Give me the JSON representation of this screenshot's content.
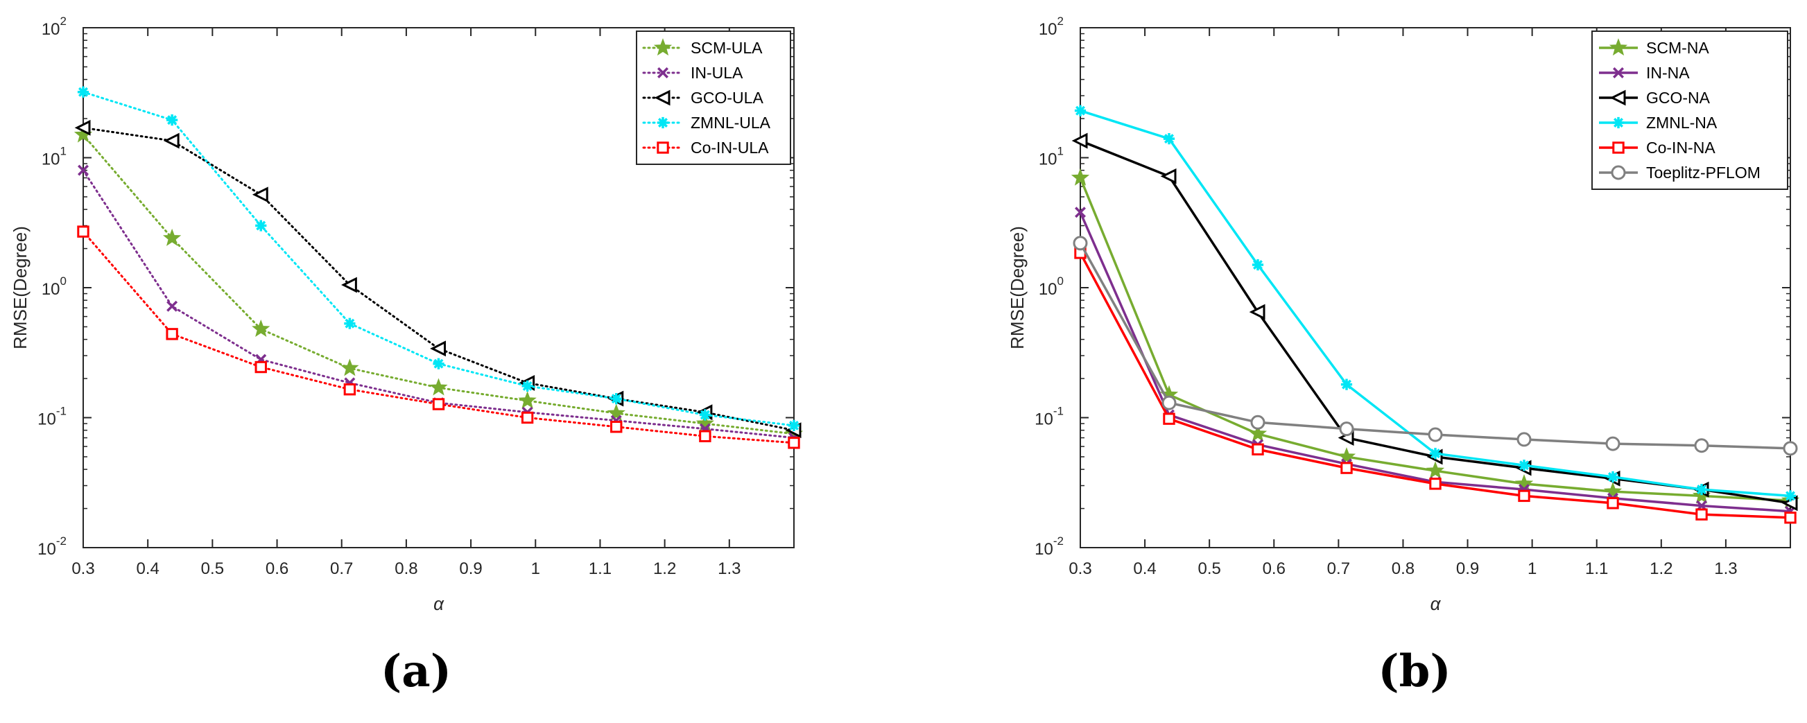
{
  "chart_data": [
    {
      "type": "line",
      "scale": "log-y",
      "caption": "(a)",
      "xlabel": "α",
      "ylabel": "RMSE(Degree)",
      "xlim": [
        0.3,
        1.4
      ],
      "ylim": [
        0.01,
        100
      ],
      "x_ticks": [
        "0.3",
        "0.4",
        "0.5",
        "0.6",
        "0.7",
        "0.8",
        "0.9",
        "1",
        "1.1",
        "1.2",
        "1.3"
      ],
      "y_ticks": [
        {
          "base": "10",
          "exp": "-2"
        },
        {
          "base": "10",
          "exp": "-1"
        },
        {
          "base": "10",
          "exp": "0"
        },
        {
          "base": "10",
          "exp": "1"
        },
        {
          "base": "10",
          "exp": "2"
        }
      ],
      "legend_position": "top-right",
      "x": [
        0.3,
        0.4375,
        0.575,
        0.7125,
        0.85,
        0.9875,
        1.125,
        1.2625,
        1.4
      ],
      "series": [
        {
          "name": "SCM-ULA",
          "color": "#77ac30",
          "marker": "star",
          "dash": "dotted",
          "values": [
            15,
            2.4,
            0.48,
            0.24,
            0.17,
            0.135,
            0.108,
            0.09,
            0.075
          ]
        },
        {
          "name": "IN-ULA",
          "color": "#7e2f8e",
          "marker": "x",
          "dash": "dotted",
          "values": [
            8,
            0.72,
            0.28,
            0.185,
            0.13,
            0.11,
            0.095,
            0.082,
            0.07
          ]
        },
        {
          "name": "GCO-ULA",
          "color": "#000000",
          "marker": "triangle-left",
          "dash": "dotted",
          "values": [
            17,
            13.5,
            5.2,
            1.05,
            0.34,
            0.185,
            0.14,
            0.11,
            0.08
          ]
        },
        {
          "name": "ZMNL-ULA",
          "color": "#00e6f5",
          "marker": "asterisk",
          "dash": "dotted",
          "values": [
            32,
            19.5,
            3.0,
            0.53,
            0.26,
            0.175,
            0.14,
            0.105,
            0.087
          ]
        },
        {
          "name": "Co-IN-ULA",
          "color": "#ff0000",
          "marker": "square",
          "dash": "dotted",
          "values": [
            2.7,
            0.44,
            0.245,
            0.165,
            0.127,
            0.1,
            0.085,
            0.072,
            0.064
          ]
        }
      ]
    },
    {
      "type": "line",
      "scale": "log-y",
      "caption": "(b)",
      "xlabel": "α",
      "ylabel": "RMSE(Degree)",
      "xlim": [
        0.3,
        1.4
      ],
      "ylim": [
        0.01,
        100
      ],
      "x_ticks": [
        "0.3",
        "0.4",
        "0.5",
        "0.6",
        "0.7",
        "0.8",
        "0.9",
        "1",
        "1.1",
        "1.2",
        "1.3"
      ],
      "y_ticks": [
        {
          "base": "10",
          "exp": "-2"
        },
        {
          "base": "10",
          "exp": "-1"
        },
        {
          "base": "10",
          "exp": "0"
        },
        {
          "base": "10",
          "exp": "1"
        },
        {
          "base": "10",
          "exp": "2"
        }
      ],
      "legend_position": "top-right",
      "x": [
        0.3,
        0.4375,
        0.575,
        0.7125,
        0.85,
        0.9875,
        1.125,
        1.2625,
        1.4
      ],
      "series": [
        {
          "name": "SCM-NA",
          "color": "#77ac30",
          "marker": "star",
          "dash": "solid",
          "values": [
            7.0,
            0.15,
            0.075,
            0.05,
            0.039,
            0.031,
            0.027,
            0.025,
            0.023
          ]
        },
        {
          "name": "IN-NA",
          "color": "#7e2f8e",
          "marker": "x",
          "dash": "solid",
          "values": [
            3.8,
            0.105,
            0.062,
            0.044,
            0.032,
            0.028,
            0.024,
            0.021,
            0.019
          ]
        },
        {
          "name": "GCO-NA",
          "color": "#000000",
          "marker": "triangle-left",
          "dash": "solid",
          "values": [
            13.5,
            7.2,
            0.65,
            0.07,
            0.05,
            0.041,
            0.034,
            0.028,
            0.022
          ]
        },
        {
          "name": "ZMNL-NA",
          "color": "#00e6f5",
          "marker": "asterisk",
          "dash": "solid",
          "values": [
            23,
            14,
            1.5,
            0.18,
            0.053,
            0.043,
            0.035,
            0.028,
            0.025
          ]
        },
        {
          "name": "Co-IN-NA",
          "color": "#ff0000",
          "marker": "square",
          "dash": "solid",
          "values": [
            1.85,
            0.098,
            0.057,
            0.041,
            0.031,
            0.025,
            0.022,
            0.018,
            0.017
          ]
        },
        {
          "name": "Toeplitz-PFLOM",
          "color": "#808080",
          "marker": "circle",
          "dash": "solid",
          "values": [
            2.2,
            0.13,
            0.092,
            0.082,
            0.074,
            0.068,
            0.063,
            0.061,
            0.058
          ]
        }
      ]
    }
  ]
}
